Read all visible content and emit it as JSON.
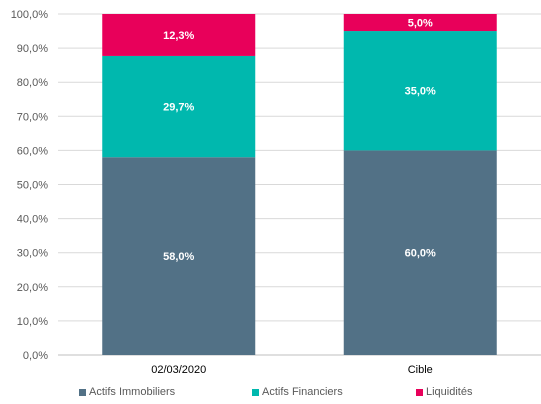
{
  "chart_data": {
    "type": "bar",
    "stacked": true,
    "categories": [
      "02/03/2020",
      "Cible"
    ],
    "series": [
      {
        "name": "Actifs Immobiliers",
        "color": "#527186",
        "values": [
          58.0,
          60.0
        ],
        "labels": [
          "58,0%",
          "60,0%"
        ]
      },
      {
        "name": "Actifs Financiers",
        "color": "#00B8AE",
        "values": [
          29.7,
          35.0
        ],
        "labels": [
          "29,7%",
          "35,0%"
        ]
      },
      {
        "name": "Liquidités",
        "color": "#E8005A",
        "values": [
          12.3,
          5.0
        ],
        "labels": [
          "12,3%",
          "5,0%"
        ]
      }
    ],
    "yticks": [
      "0,0%",
      "10,0%",
      "20,0%",
      "30,0%",
      "40,0%",
      "50,0%",
      "60,0%",
      "70,0%",
      "80,0%",
      "90,0%",
      "100,0%"
    ],
    "ylim": [
      0,
      100
    ],
    "grid": true,
    "legend_position": "bottom"
  }
}
